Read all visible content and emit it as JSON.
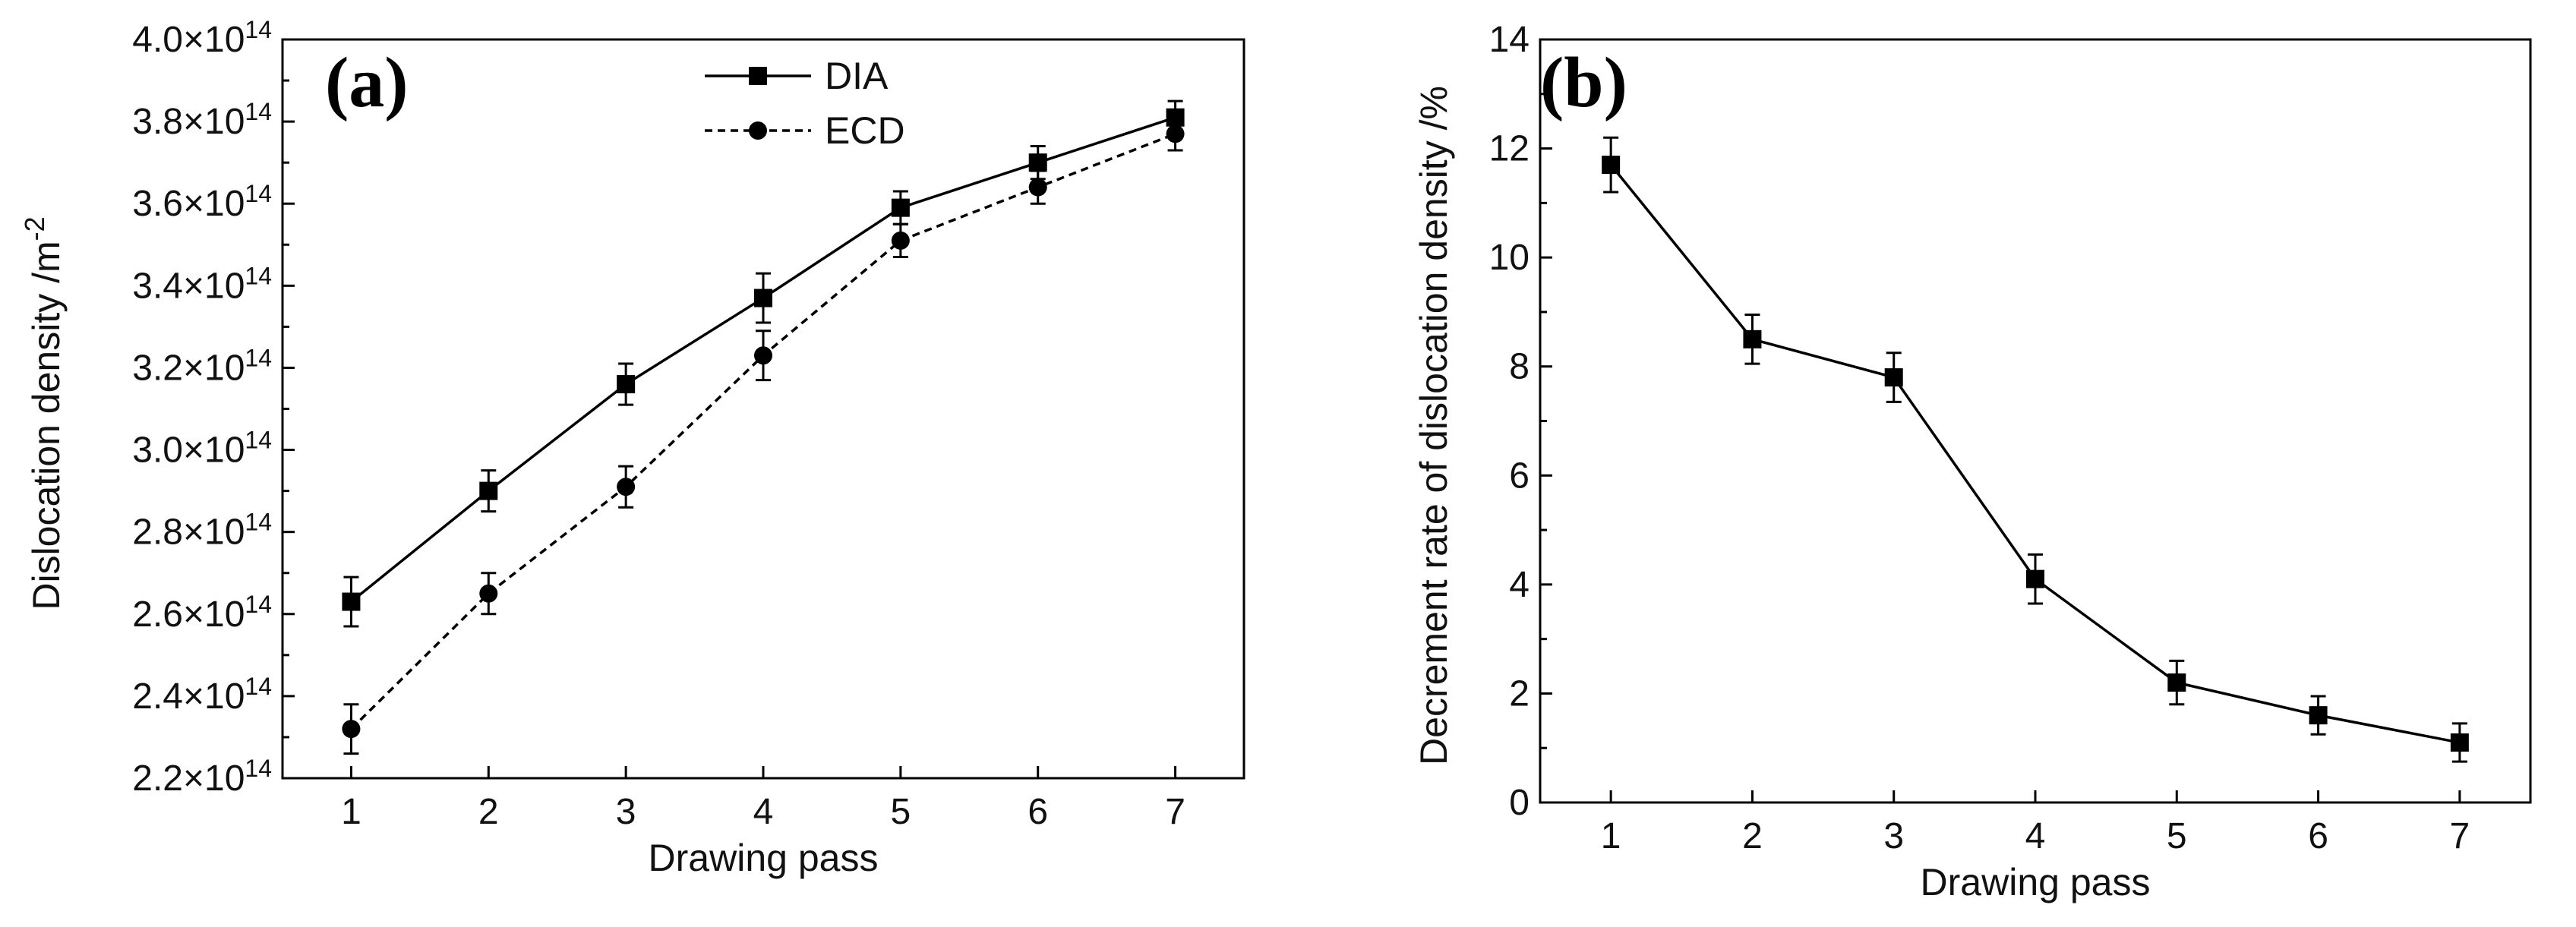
{
  "chart_data": [
    {
      "panel_label": "(a)",
      "type": "line",
      "xlabel": "Drawing pass",
      "ylabel_main": "Dislocation density /m",
      "ylabel_sup": "-2",
      "x": [
        1,
        2,
        3,
        4,
        5,
        6,
        7
      ],
      "xlim": [
        0.5,
        7.5
      ],
      "ylim": [
        2.2,
        4.0
      ],
      "y_ticks": [
        2.2,
        2.4,
        2.6,
        2.8,
        3.0,
        3.2,
        3.4,
        3.6,
        3.8,
        4.0
      ],
      "y_tick_mult": "×10",
      "y_tick_exp": "14",
      "legend_placement": "top-center",
      "series": [
        {
          "name": "DIA",
          "marker": "square",
          "line": "solid",
          "values": [
            2.63,
            2.9,
            3.16,
            3.37,
            3.59,
            3.7,
            3.81
          ],
          "error": [
            0.06,
            0.05,
            0.05,
            0.06,
            0.04,
            0.04,
            0.04
          ]
        },
        {
          "name": "ECD",
          "marker": "circle",
          "line": "dashed",
          "values": [
            2.32,
            2.65,
            2.91,
            3.23,
            3.51,
            3.64,
            3.77
          ],
          "error": [
            0.06,
            0.05,
            0.05,
            0.06,
            0.04,
            0.04,
            0.04
          ]
        }
      ]
    },
    {
      "panel_label": "(b)",
      "type": "line",
      "xlabel": "Drawing pass",
      "ylabel": "Decrement rate of  dislocation density /%",
      "x": [
        1,
        2,
        3,
        4,
        5,
        6,
        7
      ],
      "xlim": [
        0.5,
        7.5
      ],
      "ylim": [
        0,
        14
      ],
      "y_ticks": [
        0,
        2,
        4,
        6,
        8,
        10,
        12,
        14
      ],
      "series": [
        {
          "marker": "square",
          "line": "solid",
          "values": [
            11.7,
            8.5,
            7.8,
            4.1,
            2.2,
            1.6,
            1.1
          ],
          "error": [
            0.5,
            0.45,
            0.45,
            0.45,
            0.4,
            0.35,
            0.35
          ]
        }
      ]
    }
  ]
}
